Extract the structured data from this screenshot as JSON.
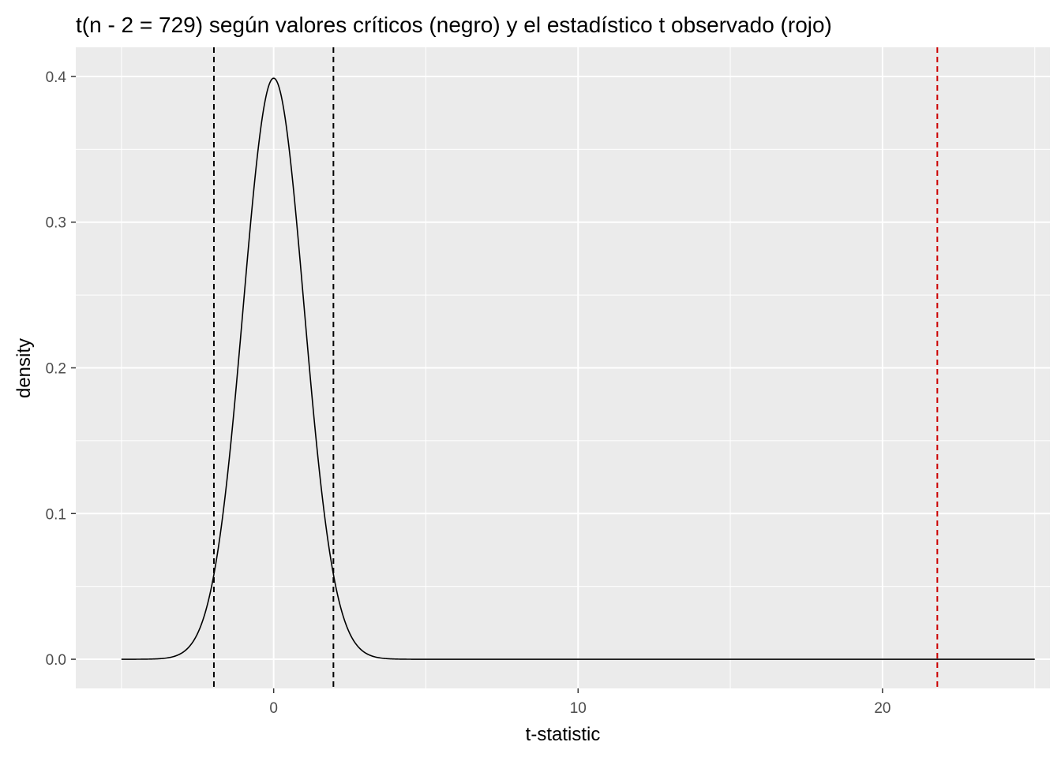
{
  "chart_data": {
    "type": "line",
    "title": "t(n - 2 = 729) según valores críticos (negro) y el estadístico t observado (rojo)",
    "xlabel": "t-statistic",
    "ylabel": "density",
    "xlim": [
      -6.5,
      25.5
    ],
    "ylim": [
      -0.02,
      0.42
    ],
    "x_ticks": [
      0,
      10,
      20
    ],
    "y_ticks": [
      0.0,
      0.1,
      0.2,
      0.3,
      0.4
    ],
    "x_tick_labels": [
      "0",
      "10",
      "20"
    ],
    "y_tick_labels": [
      "0.0",
      "0.1",
      "0.2",
      "0.3",
      "0.4"
    ],
    "grid": true,
    "series": [
      {
        "distribution": "t",
        "df": 729,
        "x_range": [
          -5,
          25
        ],
        "color": "#000000"
      }
    ],
    "vlines": [
      {
        "x": -1.963,
        "color": "#000000",
        "style": "dashed"
      },
      {
        "x": 1.963,
        "color": "#000000",
        "style": "dashed"
      },
      {
        "x": 21.8,
        "color": "#cc0000",
        "style": "dashed"
      }
    ],
    "colors": {
      "panel_background": "#ebebeb",
      "grid": "#ffffff",
      "curve": "#000000",
      "critical": "#000000",
      "observed": "#cc0000"
    }
  }
}
